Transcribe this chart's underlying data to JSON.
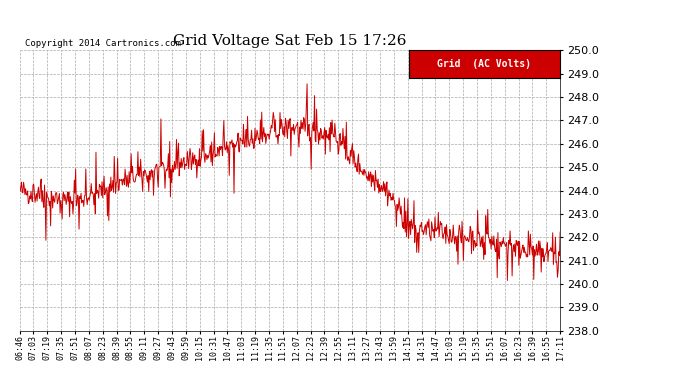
{
  "title": "Grid Voltage Sat Feb 15 17:26",
  "copyright": "Copyright 2014 Cartronics.com",
  "legend_label": "Grid  (AC Volts)",
  "legend_bg": "#cc0000",
  "legend_text_color": "#ffffff",
  "line_color": "#cc0000",
  "background_color": "#ffffff",
  "grid_color": "#aaaaaa",
  "y_min": 238.0,
  "y_max": 250.0,
  "y_ticks": [
    238.0,
    239.0,
    240.0,
    241.0,
    242.0,
    243.0,
    244.0,
    245.0,
    246.0,
    247.0,
    248.0,
    249.0,
    250.0
  ],
  "x_tick_labels": [
    "06:46",
    "07:03",
    "07:19",
    "07:35",
    "07:51",
    "08:07",
    "08:23",
    "08:39",
    "08:55",
    "09:11",
    "09:27",
    "09:43",
    "09:59",
    "10:15",
    "10:31",
    "10:47",
    "11:03",
    "11:19",
    "11:35",
    "11:51",
    "12:07",
    "12:23",
    "12:39",
    "12:55",
    "13:11",
    "13:27",
    "13:43",
    "13:59",
    "14:15",
    "14:31",
    "14:47",
    "15:03",
    "15:19",
    "15:35",
    "15:51",
    "16:07",
    "16:23",
    "16:39",
    "16:55",
    "17:11"
  ],
  "seed": 42,
  "figwidth": 6.9,
  "figheight": 3.75,
  "dpi": 100
}
